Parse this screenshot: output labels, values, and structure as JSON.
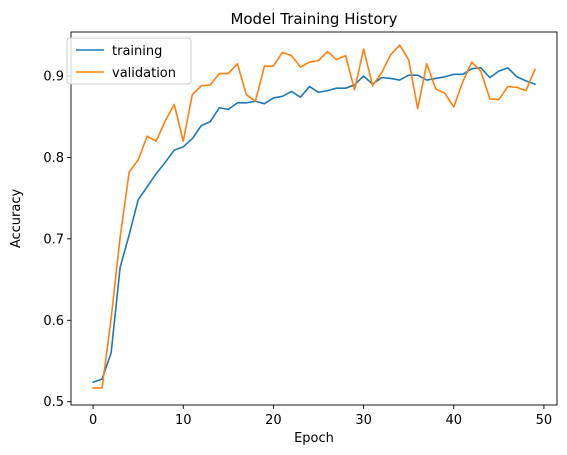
{
  "chart_data": {
    "type": "line",
    "title": "Model Training History",
    "xlabel": "Epoch",
    "ylabel": "Accuracy",
    "xlim": [
      -2.45,
      51.45
    ],
    "ylim": [
      0.496,
      0.954
    ],
    "xticks": [
      0,
      10,
      20,
      30,
      40,
      50
    ],
    "yticks": [
      0.5,
      0.6,
      0.7,
      0.8,
      0.9
    ],
    "grid": false,
    "legend_position": "upper-left",
    "x": [
      0,
      1,
      2,
      3,
      4,
      5,
      6,
      7,
      8,
      9,
      10,
      11,
      12,
      13,
      14,
      15,
      16,
      17,
      18,
      19,
      20,
      21,
      22,
      23,
      24,
      25,
      26,
      27,
      28,
      29,
      30,
      31,
      32,
      33,
      34,
      35,
      36,
      37,
      38,
      39,
      40,
      41,
      42,
      43,
      44,
      45,
      46,
      47,
      48,
      49
    ],
    "series": [
      {
        "name": "training",
        "color": "#1f77b4",
        "values": [
          0.524,
          0.528,
          0.56,
          0.665,
          0.705,
          0.748,
          0.764,
          0.78,
          0.794,
          0.809,
          0.813,
          0.823,
          0.839,
          0.844,
          0.861,
          0.859,
          0.867,
          0.867,
          0.869,
          0.866,
          0.873,
          0.875,
          0.881,
          0.874,
          0.887,
          0.88,
          0.882,
          0.885,
          0.885,
          0.889,
          0.9,
          0.89,
          0.898,
          0.897,
          0.895,
          0.901,
          0.901,
          0.895,
          0.897,
          0.899,
          0.902,
          0.902,
          0.909,
          0.91,
          0.898,
          0.906,
          0.91,
          0.899,
          0.894,
          0.89
        ]
      },
      {
        "name": "validation",
        "color": "#ff7f0e",
        "values": [
          0.517,
          0.517,
          0.602,
          0.702,
          0.782,
          0.797,
          0.826,
          0.82,
          0.845,
          0.865,
          0.82,
          0.877,
          0.888,
          0.889,
          0.903,
          0.903,
          0.915,
          0.877,
          0.869,
          0.912,
          0.912,
          0.929,
          0.925,
          0.911,
          0.917,
          0.919,
          0.93,
          0.92,
          0.925,
          0.883,
          0.933,
          0.888,
          0.904,
          0.926,
          0.938,
          0.92,
          0.86,
          0.915,
          0.884,
          0.879,
          0.862,
          0.893,
          0.917,
          0.906,
          0.872,
          0.871,
          0.887,
          0.886,
          0.882,
          0.908
        ]
      }
    ]
  }
}
